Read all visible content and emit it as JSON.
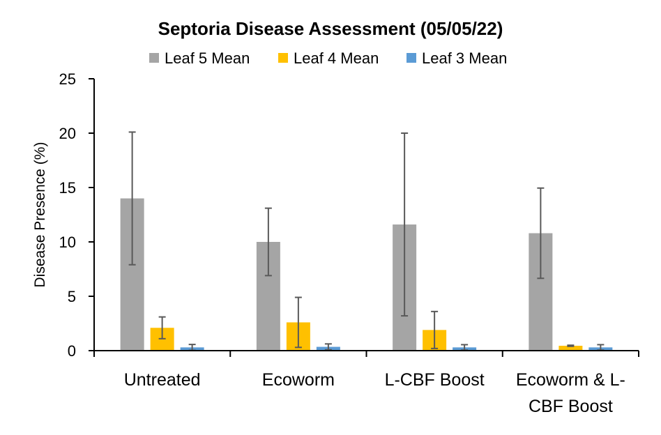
{
  "chart_data": {
    "type": "bar",
    "title": "Septoria Disease Assessment (05/05/22)",
    "xlabel": "",
    "ylabel": "Disease Presence (%)",
    "ylim": [
      0,
      25
    ],
    "yticks": [
      0,
      5,
      10,
      15,
      20,
      25
    ],
    "grid": false,
    "legend_position": "top",
    "categories": [
      [
        "Untreated"
      ],
      [
        "Ecoworm"
      ],
      [
        "L-CBF Boost"
      ],
      [
        "Ecoworm & L-",
        "CBF Boost"
      ]
    ],
    "series": [
      {
        "name": "Leaf 5 Mean",
        "color": "#A5A5A5",
        "values": [
          14.0,
          10.0,
          11.6,
          10.8
        ],
        "error": [
          6.1,
          3.1,
          8.4,
          4.15
        ]
      },
      {
        "name": "Leaf 4 Mean",
        "color": "#FFC000",
        "values": [
          2.1,
          2.6,
          1.9,
          0.45
        ],
        "error": [
          1.0,
          2.3,
          1.7,
          0.05
        ]
      },
      {
        "name": "Leaf 3 Mean",
        "color": "#5B9BD5",
        "values": [
          0.3,
          0.35,
          0.3,
          0.3
        ],
        "error": [
          0.27,
          0.27,
          0.25,
          0.25
        ]
      }
    ],
    "error_bar_color": "#595959"
  }
}
